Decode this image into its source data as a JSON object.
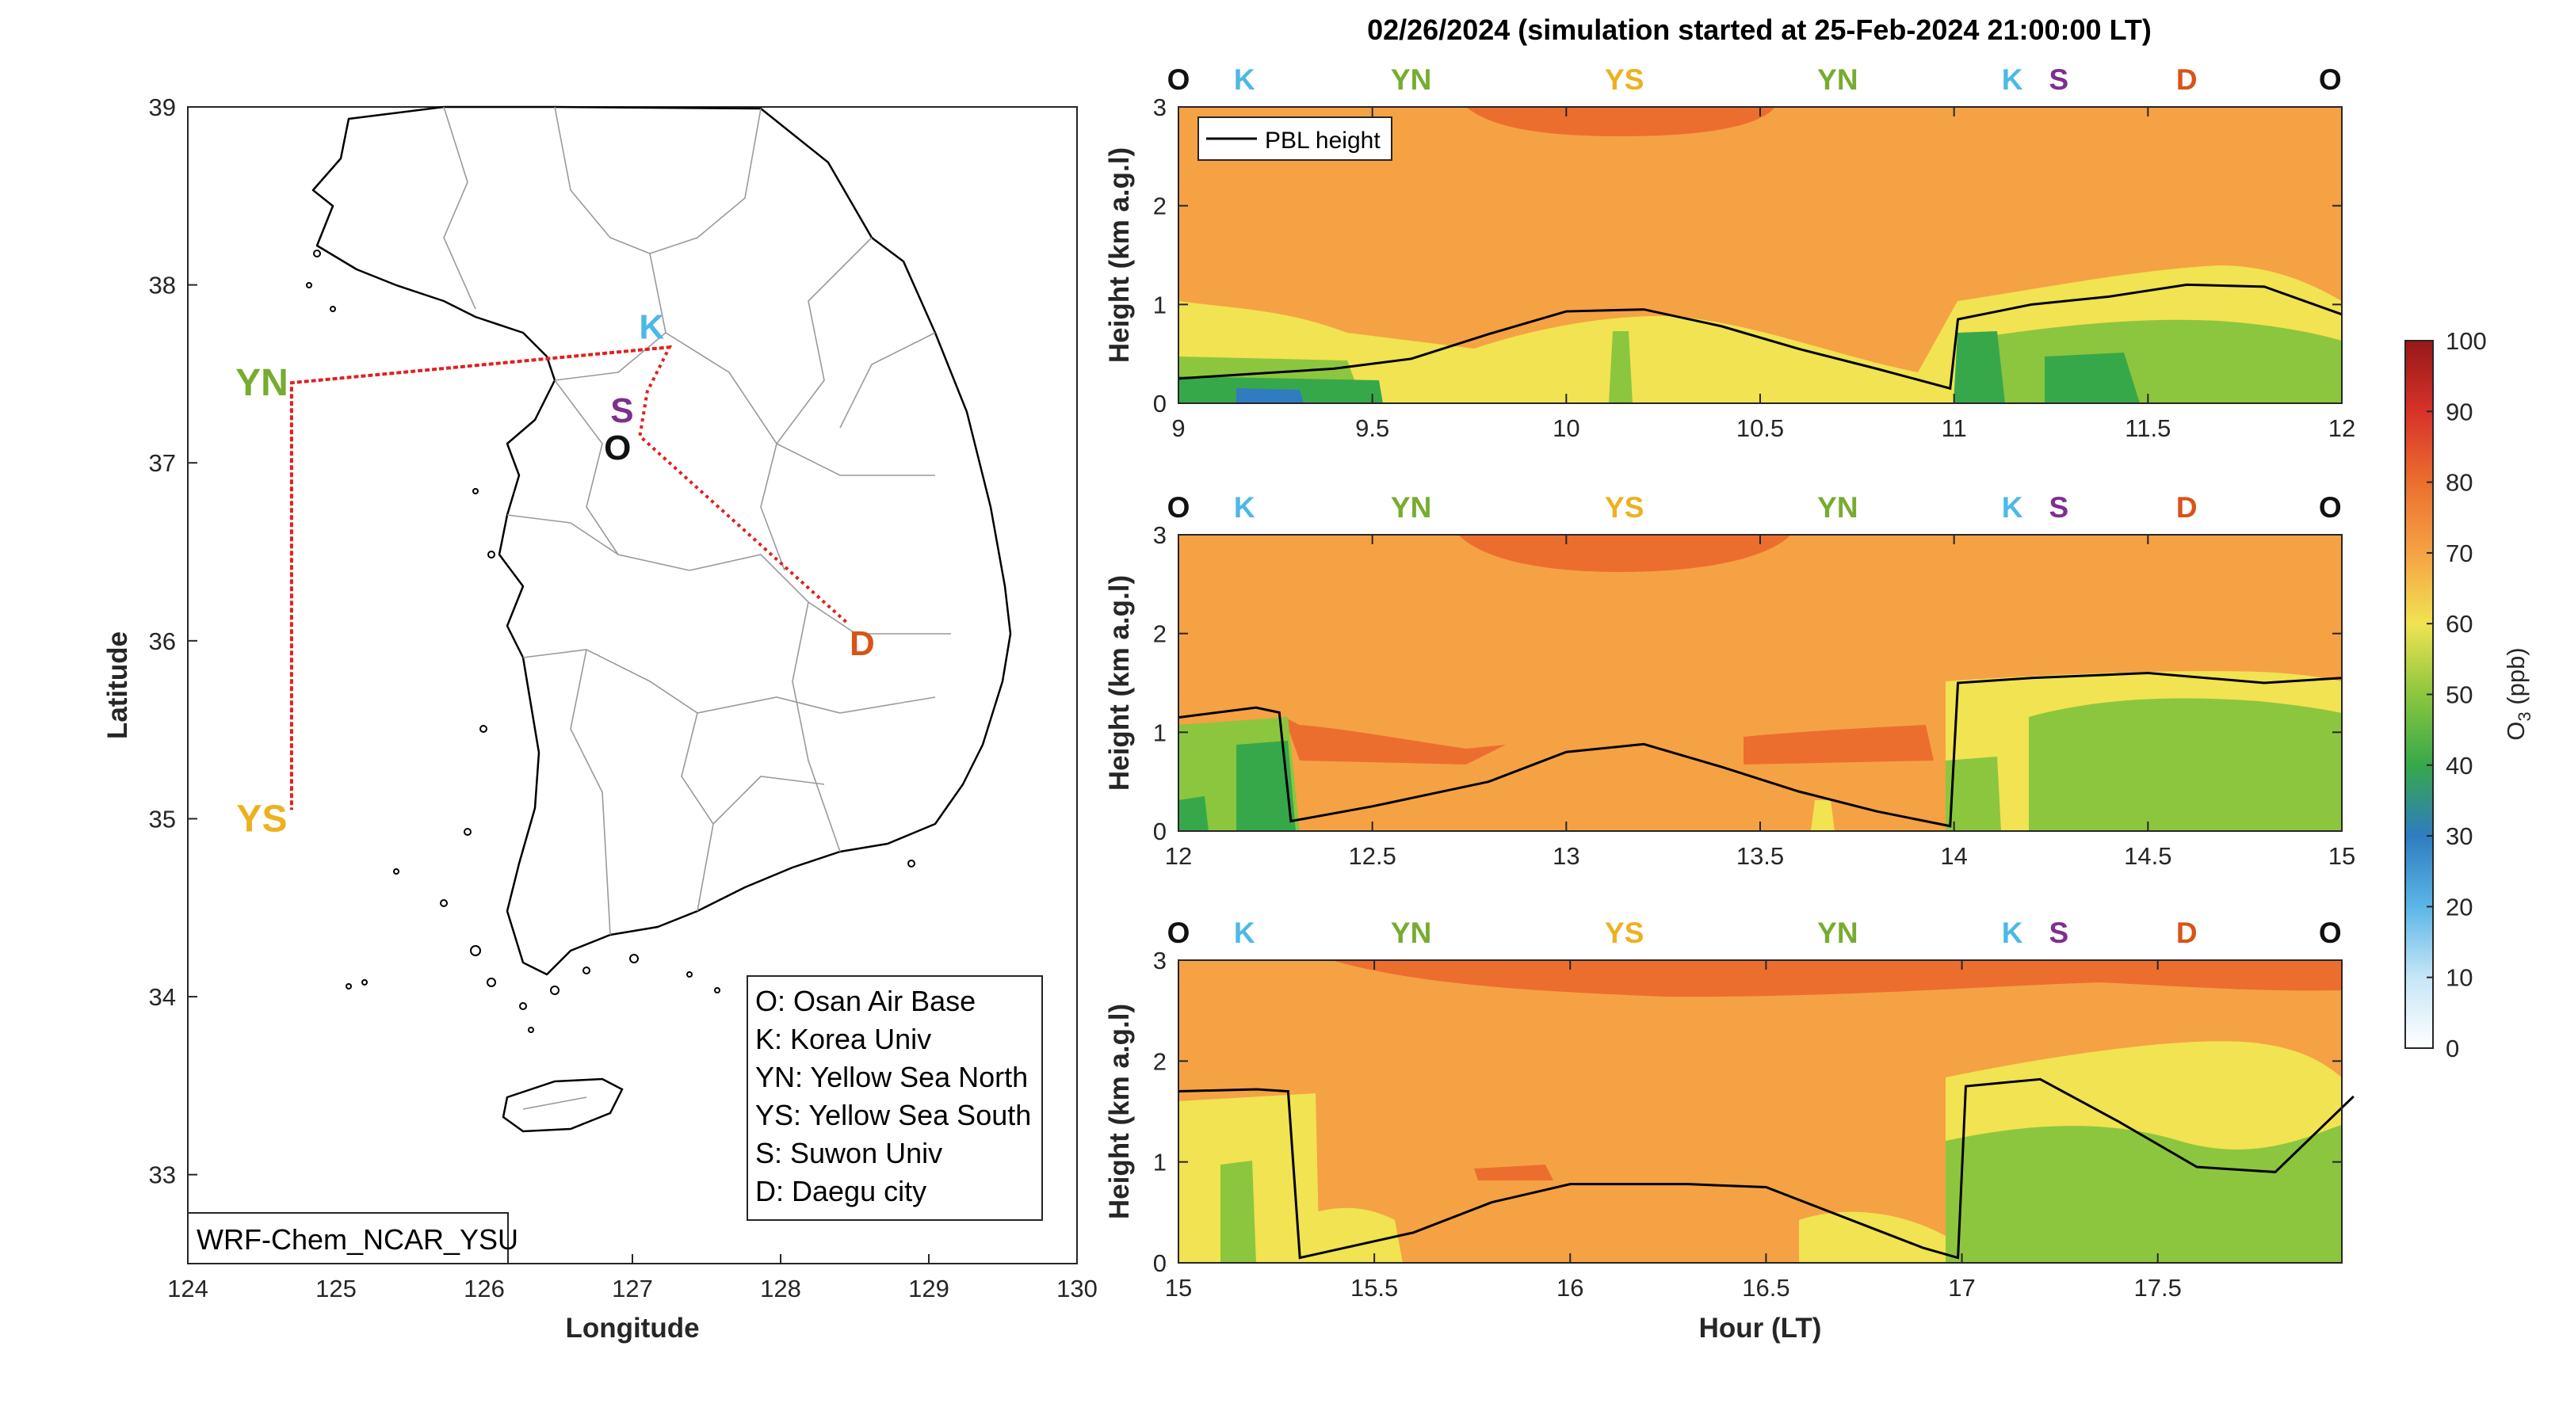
{
  "title": "02/26/2024 (simulation started at 25-Feb-2024 21:00:00 LT)",
  "colors": {
    "O": "#111111",
    "K": "#4db8e8",
    "YN": "#77ac30",
    "YS": "#edb120",
    "S": "#7e2f8e",
    "D": "#d95319",
    "route": "#e02020",
    "coast": "#000000",
    "borders": "#9a9a9a"
  },
  "map": {
    "xlabel": "Longitude",
    "ylabel": "Latitude",
    "xlim": [
      124,
      130
    ],
    "ylim": [
      32.5,
      39
    ],
    "xticks": [
      "124",
      "125",
      "126",
      "127",
      "128",
      "129",
      "130"
    ],
    "yticks": [
      "33",
      "34",
      "35",
      "36",
      "37",
      "38",
      "39"
    ],
    "model_label": "WRF-Chem_NCAR_YSU",
    "stations": [
      {
        "code": "YN",
        "lon": 124.7,
        "lat": 37.45,
        "label_lon": 124.5,
        "label_lat": 37.45
      },
      {
        "code": "YS",
        "lon": 124.7,
        "lat": 35.05,
        "label_lon": 124.5,
        "label_lat": 35.0
      },
      {
        "code": "K",
        "lon": 127.25,
        "lat": 37.65,
        "label_lon": 127.13,
        "label_lat": 37.77
      },
      {
        "code": "S",
        "lon": 127.1,
        "lat": 37.4,
        "label_lon": 126.93,
        "label_lat": 37.3
      },
      {
        "code": "O",
        "lon": 127.05,
        "lat": 37.15,
        "label_lon": 126.9,
        "label_lat": 37.09
      },
      {
        "code": "D",
        "lon": 128.45,
        "lat": 36.1,
        "label_lon": 128.55,
        "label_lat": 35.99
      }
    ],
    "route_lonlat": [
      [
        127.25,
        37.65
      ],
      [
        124.7,
        37.45
      ],
      [
        124.7,
        35.05
      ],
      [
        124.7,
        37.45
      ],
      [
        127.25,
        37.65
      ],
      [
        127.1,
        37.4
      ],
      [
        127.05,
        37.15
      ],
      [
        128.45,
        36.1
      ]
    ],
    "legend": [
      "O: Osan Air Base",
      "K: Korea Univ",
      "YN: Yellow Sea North",
      "YS: Yellow Sea South",
      "S: Suwon Univ",
      "D: Daegu city"
    ]
  },
  "colorbar": {
    "label_main": "O",
    "label_sub": "3",
    "label_unit": " (ppb)",
    "ticks": [
      "0",
      "10",
      "20",
      "30",
      "40",
      "50",
      "60",
      "70",
      "80",
      "90",
      "100"
    ],
    "lim": [
      0,
      100
    ]
  },
  "legend_pbl": "PBL height",
  "chart_data": {
    "type": "heatmap",
    "title": "02/26/2024 (simulation started at 25-Feb-2024 21:00:00 LT)",
    "xlabel": "Hour (LT)",
    "ylabel": "Height (km a.g.l)",
    "colorbar_label": "O3 (ppb)",
    "clim": [
      0,
      100
    ],
    "station_labels": [
      "O",
      "K",
      "YN",
      "YS",
      "YN",
      "K",
      "S",
      "D",
      "O"
    ],
    "station_hours": [
      0,
      0.17,
      0.6,
      1.15,
      1.7,
      2.15,
      2.27,
      2.6,
      2.97
    ],
    "panels": [
      {
        "xlim": [
          9,
          12
        ],
        "ylim": [
          0,
          3
        ],
        "xticks": [
          "9",
          "9.5",
          "10",
          "10.5",
          "11",
          "11.5",
          "12"
        ],
        "yticks": [
          "0",
          "1",
          "2",
          "3"
        ],
        "pbl_hour": [
          9.0,
          9.2,
          9.4,
          9.6,
          9.8,
          10.0,
          10.2,
          10.4,
          10.6,
          10.8,
          10.99,
          11.01,
          11.2,
          11.4,
          11.6,
          11.8,
          12.0
        ],
        "pbl_km": [
          0.25,
          0.3,
          0.35,
          0.45,
          0.7,
          0.93,
          0.95,
          0.78,
          0.55,
          0.35,
          0.15,
          0.85,
          1.0,
          1.08,
          1.2,
          1.18,
          0.9
        ]
      },
      {
        "xlim": [
          12,
          15
        ],
        "ylim": [
          0,
          3
        ],
        "xticks": [
          "12",
          "12.5",
          "13",
          "13.5",
          "14",
          "14.5",
          "15"
        ],
        "yticks": [
          "0",
          "1",
          "2",
          "3"
        ],
        "pbl_hour": [
          12.0,
          12.2,
          12.26,
          12.29,
          12.5,
          12.8,
          13.0,
          13.2,
          13.4,
          13.6,
          13.8,
          13.99,
          14.01,
          14.2,
          14.5,
          14.8,
          15.0
        ],
        "pbl_km": [
          1.15,
          1.25,
          1.2,
          0.1,
          0.25,
          0.5,
          0.8,
          0.88,
          0.65,
          0.4,
          0.2,
          0.05,
          1.5,
          1.55,
          1.6,
          1.5,
          1.55
        ]
      },
      {
        "xlim": [
          15,
          18
        ],
        "ylim": [
          0,
          3
        ],
        "xticks": [
          "15",
          "15.5",
          "16",
          "16.5",
          "17",
          "17.5"
        ],
        "yticks": [
          "0",
          "1",
          "2",
          "3"
        ],
        "pbl_hour": [
          15.0,
          15.2,
          15.28,
          15.31,
          15.6,
          15.8,
          16.0,
          16.3,
          16.5,
          16.7,
          16.9,
          16.99,
          17.01,
          17.2,
          17.4,
          17.6,
          17.8,
          18.0
        ],
        "pbl_km": [
          1.7,
          1.72,
          1.7,
          0.05,
          0.3,
          0.6,
          0.78,
          0.78,
          0.75,
          0.45,
          0.15,
          0.05,
          1.75,
          1.82,
          1.4,
          0.95,
          0.9,
          1.65
        ]
      }
    ]
  }
}
